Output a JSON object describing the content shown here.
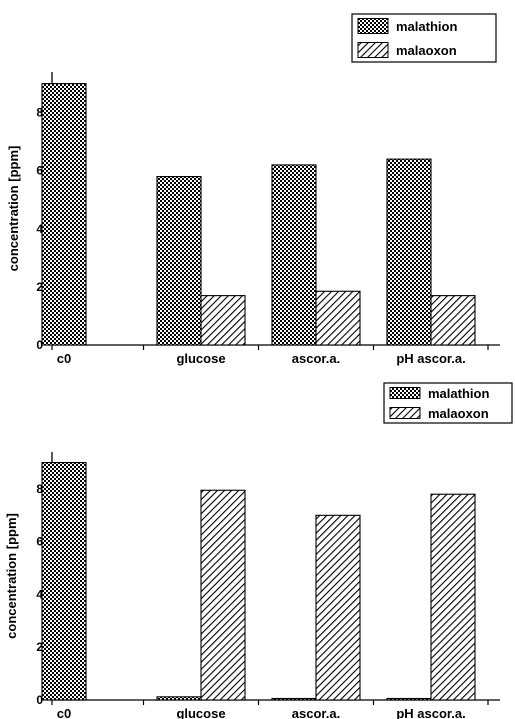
{
  "chart_data": [
    {
      "type": "bar",
      "categories": [
        "c0",
        "glucose",
        "ascor.a.",
        "pH ascor.a."
      ],
      "series": [
        {
          "name": "malathion",
          "values": [
            9.0,
            5.8,
            6.2,
            6.4
          ],
          "pattern": "dots"
        },
        {
          "name": "malaoxon",
          "values": [
            null,
            1.7,
            1.85,
            1.7
          ],
          "pattern": "hatch"
        }
      ],
      "ylabel": "concentration [ppm]",
      "ylim": [
        0,
        9.4
      ],
      "yticks": [
        "0",
        "2",
        "4",
        "6",
        "8"
      ],
      "legend_position": "top-right",
      "grid": false
    },
    {
      "type": "bar",
      "categories": [
        "c0",
        "glucose",
        "ascor.a.",
        "pH ascor.a."
      ],
      "series": [
        {
          "name": "malathion",
          "values": [
            9.0,
            0.12,
            0.05,
            0.05
          ],
          "pattern": "dots"
        },
        {
          "name": "malaoxon",
          "values": [
            null,
            7.95,
            7.0,
            7.8
          ],
          "pattern": "hatch"
        }
      ],
      "ylabel": "concentration [ppm]",
      "ylim": [
        0,
        9.4
      ],
      "yticks": [
        "0",
        "2",
        "4",
        "6",
        "8"
      ],
      "legend_position": "top-right",
      "grid": false
    }
  ],
  "colors": {
    "bar_outline": "#000000",
    "pattern_ink": "#000000",
    "background": "#ffffff"
  }
}
